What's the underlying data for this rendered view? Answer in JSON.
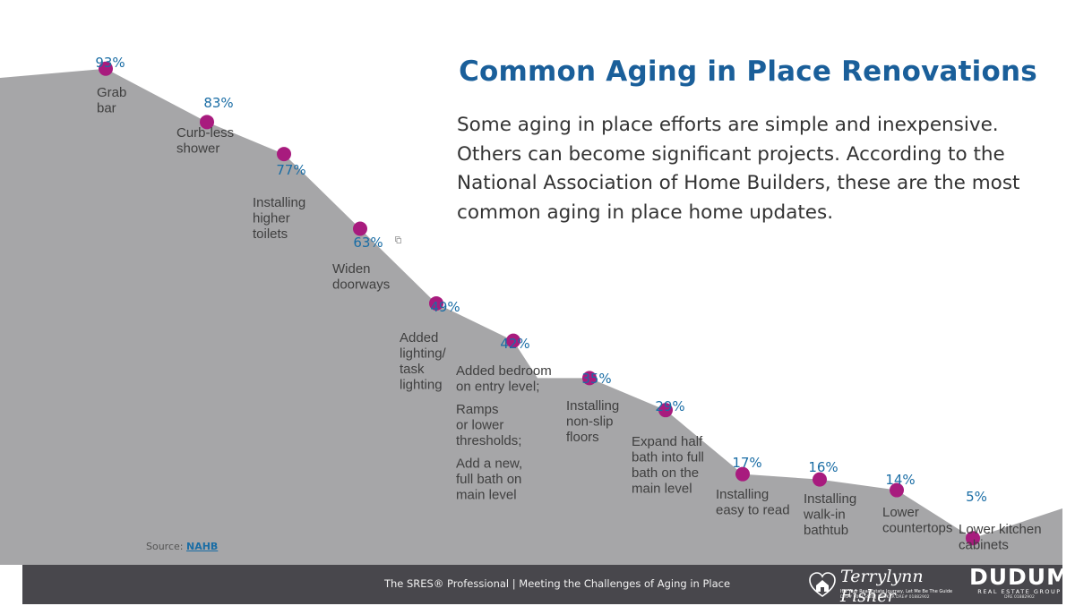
{
  "header": {
    "title": "Common Aging in Place Renovations",
    "intro": "Some aging in place efforts are simple and inexpensive. Others can become significant projects. According to the National Association of Home Builders, these are the most common aging in place home updates."
  },
  "source": {
    "prefix": "Source:",
    "name": "NAHB"
  },
  "footer": {
    "caption": "The SRES® Professional | Meeting the Challenges of Aging in Place",
    "agent_logo": {
      "name": "Terrylynn Fisher",
      "tagline": "It's Your Real Estate Journey, Let Me Be The Guide",
      "license": "DRE# 00615420 | BROKER DRE# 01882902"
    },
    "brand_logo": {
      "name": "DUDUM",
      "subtitle": "REAL ESTATE GROUP",
      "license": "DRE 01882902"
    }
  },
  "colors": {
    "area": "#a6a6a8",
    "marker": "#a81b7e",
    "percent_text": "#1a6da5",
    "title": "#1a5f9a",
    "footer_bg": "#48474c"
  },
  "chart_data": {
    "type": "area",
    "title": "",
    "xlabel": "",
    "ylabel": "",
    "ylim": [
      0,
      100
    ],
    "grid": false,
    "legend": "none",
    "categories": [
      "Grab bar",
      "Curb-less shower",
      "Installing higher toilets",
      "Widen doorways",
      "Added lighting/ task lighting",
      "Added bedroom on entry level; Ramps or lower thresholds; Add a new, full bath on main level",
      "Installing non-slip floors",
      "Expand half bath into full bath on the main level",
      "Installing easy to read",
      "Installing walk-in bathtub",
      "Lower countertops",
      "Lower kitchen cabinets"
    ],
    "values": [
      93,
      83,
      77,
      63,
      49,
      42,
      35,
      29,
      17,
      16,
      14,
      5
    ],
    "data_labels": [
      "93%",
      "83%",
      "77%",
      "63%",
      "49%",
      "42%",
      "35%",
      "29%",
      "17%",
      "16%",
      "14%",
      "5%"
    ],
    "label_lines": [
      [
        "Grab",
        "bar"
      ],
      [
        "Curb-less",
        "shower"
      ],
      [
        "Installing",
        "higher",
        "toilets"
      ],
      [
        "Widen",
        "doorways"
      ],
      [
        "Added",
        "lighting/",
        "task",
        "lighting"
      ],
      [
        "Added bedroom",
        "on entry level;",
        "Ramps",
        "or lower",
        "thresholds;",
        "Add a new,",
        "full bath on",
        "main level"
      ],
      [
        "Installing",
        "non-slip",
        "floors"
      ],
      [
        "Expand half",
        "bath into full",
        "bath on the",
        "main level"
      ],
      [
        "Installing",
        "easy to read"
      ],
      [
        "Installing",
        "walk-in",
        "bathtub"
      ],
      [
        "Lower",
        "countertops"
      ],
      [
        "Lower kitchen",
        "cabinets"
      ]
    ]
  }
}
